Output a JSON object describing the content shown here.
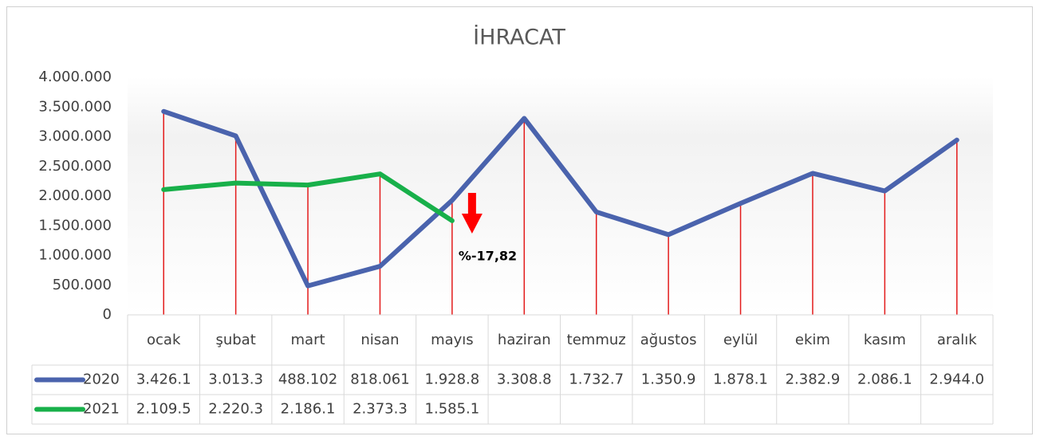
{
  "chart_data": {
    "type": "line",
    "title": "İHRACAT",
    "categories": [
      "ocak",
      "şubat",
      "mart",
      "nisan",
      "mayıs",
      "haziran",
      "temmuz",
      "ağustos",
      "eylül",
      "ekim",
      "kasım",
      "aralık"
    ],
    "series": [
      {
        "name": "2020",
        "color": "#4a63ad",
        "values": [
          3426100,
          3013300,
          488102,
          818061,
          1928800,
          3308800,
          1732700,
          1350900,
          1878100,
          2382900,
          2086100,
          2944000
        ],
        "value_labels": [
          "3.426.1",
          "3.013.3",
          "488.102",
          "818.061",
          "1.928.8",
          "3.308.8",
          "1.732.7",
          "1.350.9",
          "1.878.1",
          "2.382.9",
          "2.086.1",
          "2.944.0"
        ]
      },
      {
        "name": "2021",
        "color": "#18b04a",
        "values": [
          2109500,
          2220300,
          2186100,
          2373300,
          1585100,
          null,
          null,
          null,
          null,
          null,
          null,
          null
        ],
        "value_labels": [
          "2.109.5",
          "2.220.3",
          "2.186.1",
          "2.373.3",
          "1.585.1",
          null,
          null,
          null,
          null,
          null,
          null,
          null
        ]
      }
    ],
    "ylim": [
      0,
      4000000
    ],
    "yticks": [
      0,
      {
        "value": 500000,
        "label": "500.000"
      },
      {
        "value": 1000000,
        "label": "1.000.000"
      },
      {
        "value": 1500000,
        "label": "1.500.000"
      },
      {
        "value": 2000000,
        "label": "2.000.000"
      },
      {
        "value": 2500000,
        "label": "2.500.000"
      },
      {
        "value": 3000000,
        "label": "3.000.000"
      },
      {
        "value": 3500000,
        "label": "3.500.000"
      },
      {
        "value": 4000000,
        "label": "4.000.000"
      }
    ],
    "drop_lines": true,
    "drop_line_color": "#e31b1b",
    "annotation": "%-17,82"
  }
}
